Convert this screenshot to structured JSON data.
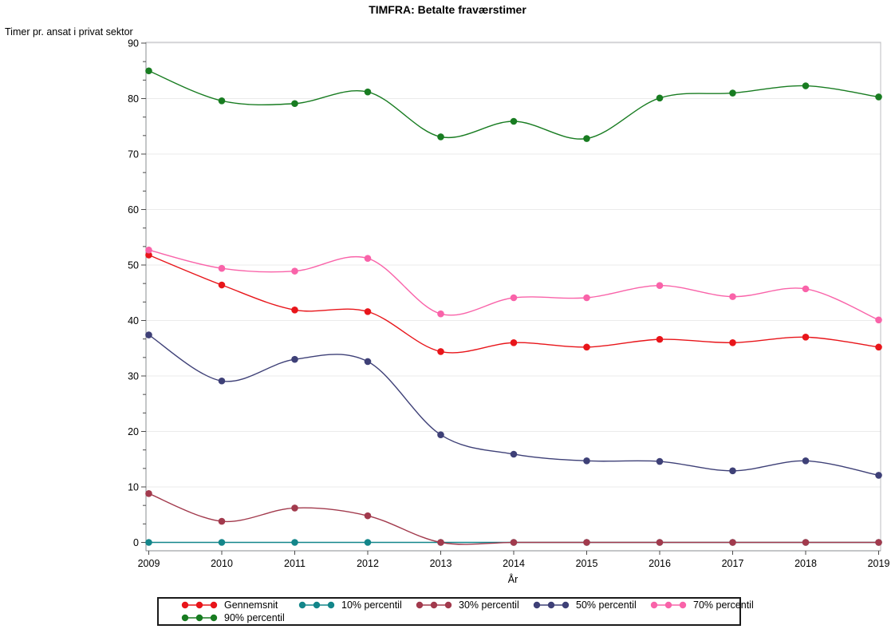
{
  "chart_data": {
    "type": "line",
    "title": "TIMFRA: Betalte fraværstimer",
    "xlabel": "År",
    "ylabel": "Timer pr. ansat i privat sektor",
    "x": [
      2009,
      2010,
      2011,
      2012,
      2013,
      2014,
      2015,
      2016,
      2017,
      2018,
      2019
    ],
    "ylim": [
      0,
      90
    ],
    "yticks": [
      0,
      10,
      20,
      30,
      40,
      50,
      60,
      70,
      80,
      90
    ],
    "grid": "horizontal-major",
    "frame": true,
    "line_style": "smooth-spline",
    "marker": "filled-circle",
    "legend_position": "bottom",
    "legend_columns": 5,
    "series": [
      {
        "name": "Gennemsnit",
        "color": "#e8151a",
        "values": [
          51.8,
          46.4,
          41.9,
          41.6,
          34.4,
          36.0,
          35.2,
          36.6,
          36.0,
          37.0,
          35.2
        ]
      },
      {
        "name": "10% percentil",
        "color": "#13868a",
        "values": [
          0,
          0,
          0,
          0,
          0,
          0,
          0,
          0,
          0,
          0,
          0
        ]
      },
      {
        "name": "30% percentil",
        "color": "#a23a4d",
        "values": [
          8.8,
          3.8,
          6.2,
          4.8,
          0,
          0,
          0,
          0,
          0,
          0,
          0
        ]
      },
      {
        "name": "50% percentil",
        "color": "#3e4077",
        "values": [
          37.4,
          29.1,
          33.0,
          32.6,
          19.4,
          15.9,
          14.7,
          14.6,
          12.9,
          14.7,
          12.1
        ]
      },
      {
        "name": "70% percentil",
        "color": "#f963a9",
        "values": [
          52.7,
          49.4,
          48.9,
          51.2,
          41.2,
          44.1,
          44.1,
          46.3,
          44.3,
          45.7,
          40.1
        ]
      },
      {
        "name": "90% percentil",
        "color": "#187c21",
        "values": [
          85.0,
          79.6,
          79.1,
          81.2,
          73.1,
          75.9,
          72.8,
          80.1,
          81.0,
          82.3,
          80.3
        ]
      }
    ],
    "colors": {
      "frame_border": "#bcbec2",
      "axis_line": "#8a8c90",
      "gridline": "#ebebeb",
      "tick_mark": "#4a4a4a",
      "text": "#000000",
      "background": "#ffffff"
    }
  }
}
